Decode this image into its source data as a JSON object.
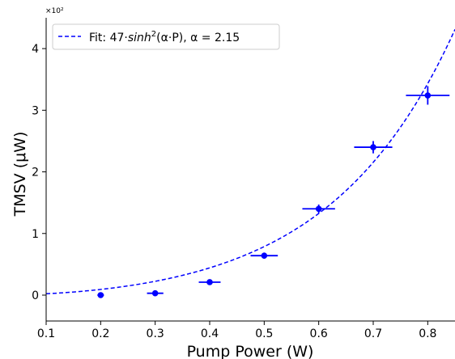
{
  "chart_data": {
    "type": "scatter",
    "xlabel": "Pump Power (W)",
    "ylabel": "TMSV (μW)",
    "y_multiplier_label": "×10²",
    "xlim": [
      0.1,
      0.85
    ],
    "ylim": [
      -0.42,
      4.5
    ],
    "y_unit_scale": 100,
    "x_ticks": [
      0.1,
      0.2,
      0.3,
      0.4,
      0.5,
      0.6,
      0.7,
      0.8
    ],
    "x_tick_labels": [
      "0.1",
      "0.2",
      "0.3",
      "0.4",
      "0.5",
      "0.6",
      "0.7",
      "0.8"
    ],
    "y_ticks": [
      0,
      1,
      2,
      3,
      4
    ],
    "y_tick_labels": [
      "0",
      "1",
      "2",
      "3",
      "4"
    ],
    "grid": false,
    "legend_position": "top-left",
    "legend": [
      {
        "label_prefix": "Fit: 47·",
        "label_func": "sinh",
        "label_sup": "2",
        "label_suffix": "(α·P), α = 2.15",
        "style": "dashed",
        "color": "#0000ff"
      }
    ],
    "series": [
      {
        "kind": "errorbar",
        "color": "#0000ff",
        "points": [
          {
            "x": 0.2,
            "y": 0.0,
            "xerr": 0.006,
            "yerr": 0.03
          },
          {
            "x": 0.3,
            "y": 0.03,
            "xerr": 0.015,
            "yerr": 0.03
          },
          {
            "x": 0.4,
            "y": 0.21,
            "xerr": 0.02,
            "yerr": 0.04
          },
          {
            "x": 0.5,
            "y": 0.64,
            "xerr": 0.025,
            "yerr": 0.05
          },
          {
            "x": 0.6,
            "y": 1.4,
            "xerr": 0.03,
            "yerr": 0.07
          },
          {
            "x": 0.7,
            "y": 2.4,
            "xerr": 0.035,
            "yerr": 0.1
          },
          {
            "x": 0.8,
            "y": 3.24,
            "xerr": 0.04,
            "yerr": 0.15
          }
        ]
      },
      {
        "kind": "fit",
        "color": "#0000ff",
        "style": "dashed",
        "model": "A*sinh(alpha*P)^2",
        "A": 47,
        "alpha": 2.15,
        "x_range": [
          0.1,
          0.85
        ]
      }
    ]
  }
}
